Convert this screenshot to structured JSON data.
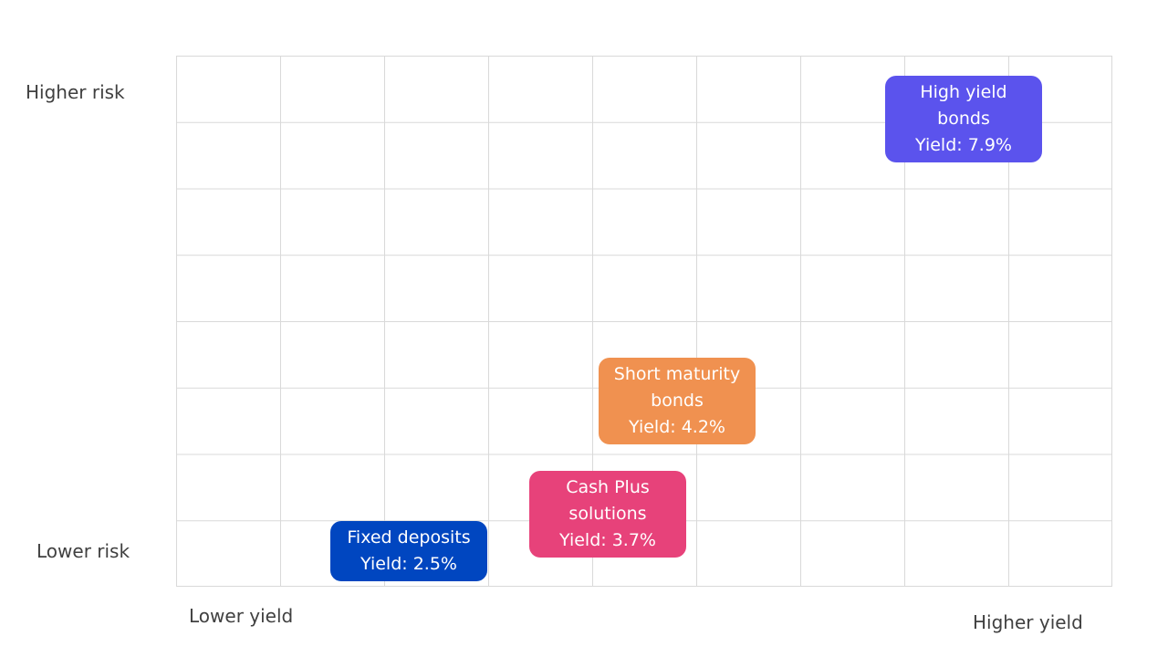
{
  "axes": {
    "y_top": "Higher risk",
    "y_bottom": "Lower risk",
    "x_left": "Lower yield",
    "x_right": "Higher yield"
  },
  "assets": [
    {
      "name_lines": [
        "High yield",
        "bonds"
      ],
      "yield": "Yield: 7.9%",
      "color": "#5b53ed"
    },
    {
      "name_lines": [
        "Short maturity",
        "bonds"
      ],
      "yield": "Yield: 4.2%",
      "color": "#f09150"
    },
    {
      "name_lines": [
        "Cash Plus",
        "solutions"
      ],
      "yield": "Yield: 3.7%",
      "color": "#e7427a"
    },
    {
      "name_lines": [
        "Fixed deposits"
      ],
      "yield": "Yield: 2.5%",
      "color": "#0046c0"
    }
  ]
}
